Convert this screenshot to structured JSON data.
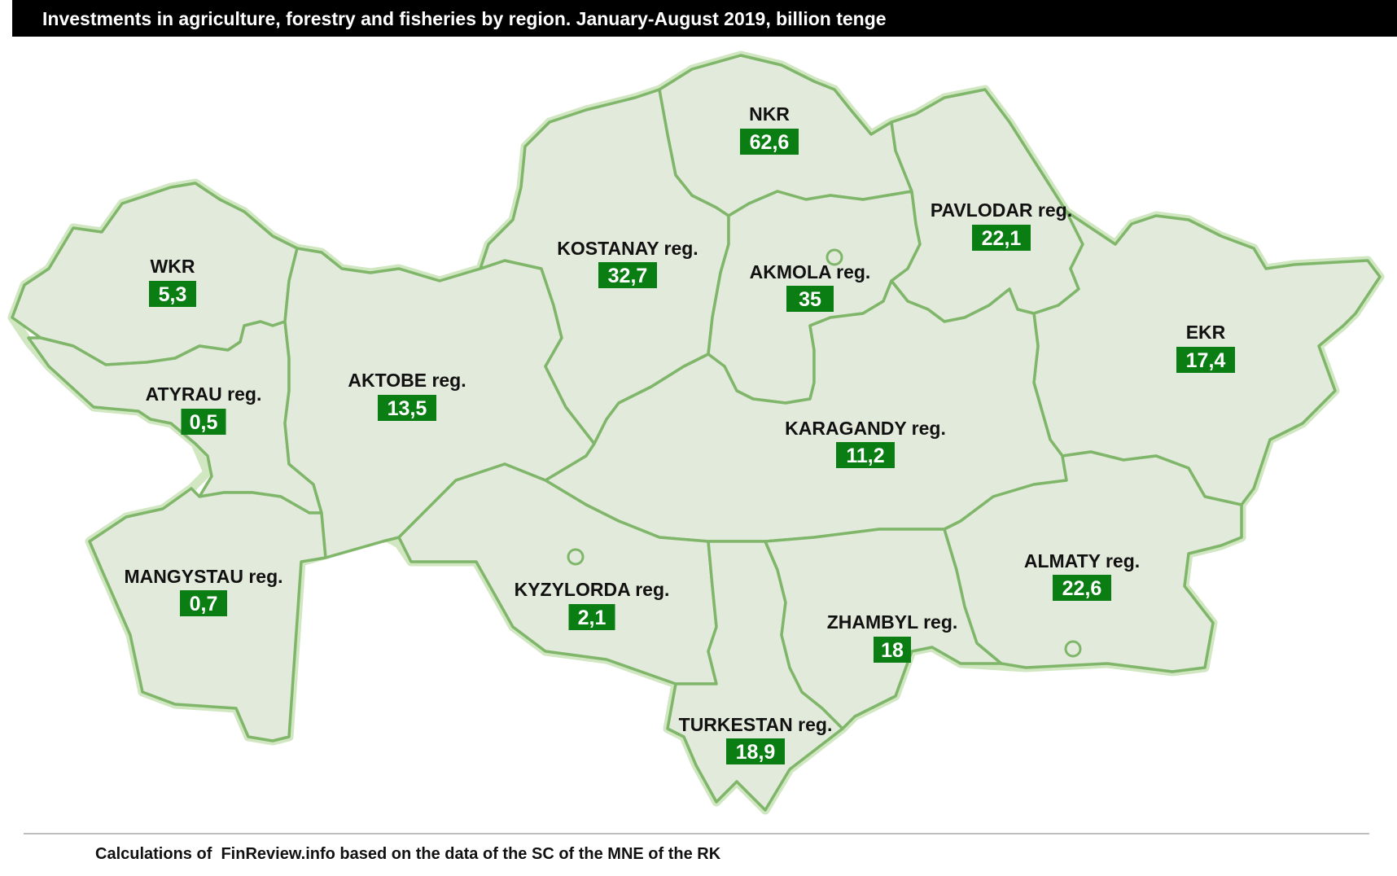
{
  "title": "Investments in agriculture, forestry and fisheries by region. January-August 2019, billion tenge",
  "source": "Calculations of  FinReview.info based on the data of the SC of the MNE of the RK",
  "colors": {
    "title_background": "#000000",
    "region_fill": "#e2eadb",
    "region_border": "#7fb66a",
    "value_badge": "#0a7d13"
  },
  "regions": [
    {
      "id": "wkr",
      "name": "WKR",
      "value": "5,3"
    },
    {
      "id": "atyrau",
      "name": "ATYRAU reg.",
      "value": "0,5"
    },
    {
      "id": "mangystau",
      "name": "MANGYSTAU reg.",
      "value": "0,7"
    },
    {
      "id": "aktobe",
      "name": "AKTOBE reg.",
      "value": "13,5"
    },
    {
      "id": "kostanay",
      "name": "KOSTANAY reg.",
      "value": "32,7"
    },
    {
      "id": "nkr",
      "name": "NKR",
      "value": "62,6"
    },
    {
      "id": "akmola",
      "name": "AKMOLA reg.",
      "value": "35"
    },
    {
      "id": "pavlodar",
      "name": "PAVLODAR reg.",
      "value": "22,1"
    },
    {
      "id": "ekr",
      "name": "EKR",
      "value": "17,4"
    },
    {
      "id": "karagandy",
      "name": "KARAGANDY reg.",
      "value": "11,2"
    },
    {
      "id": "kyzylorda",
      "name": "KYZYLORDA reg.",
      "value": "2,1"
    },
    {
      "id": "almaty",
      "name": "ALMATY reg.",
      "value": "22,6"
    },
    {
      "id": "zhambyl",
      "name": "ZHAMBYL reg.",
      "value": "18"
    },
    {
      "id": "turkestan",
      "name": "TURKESTAN reg.",
      "value": "18,9"
    }
  ]
}
